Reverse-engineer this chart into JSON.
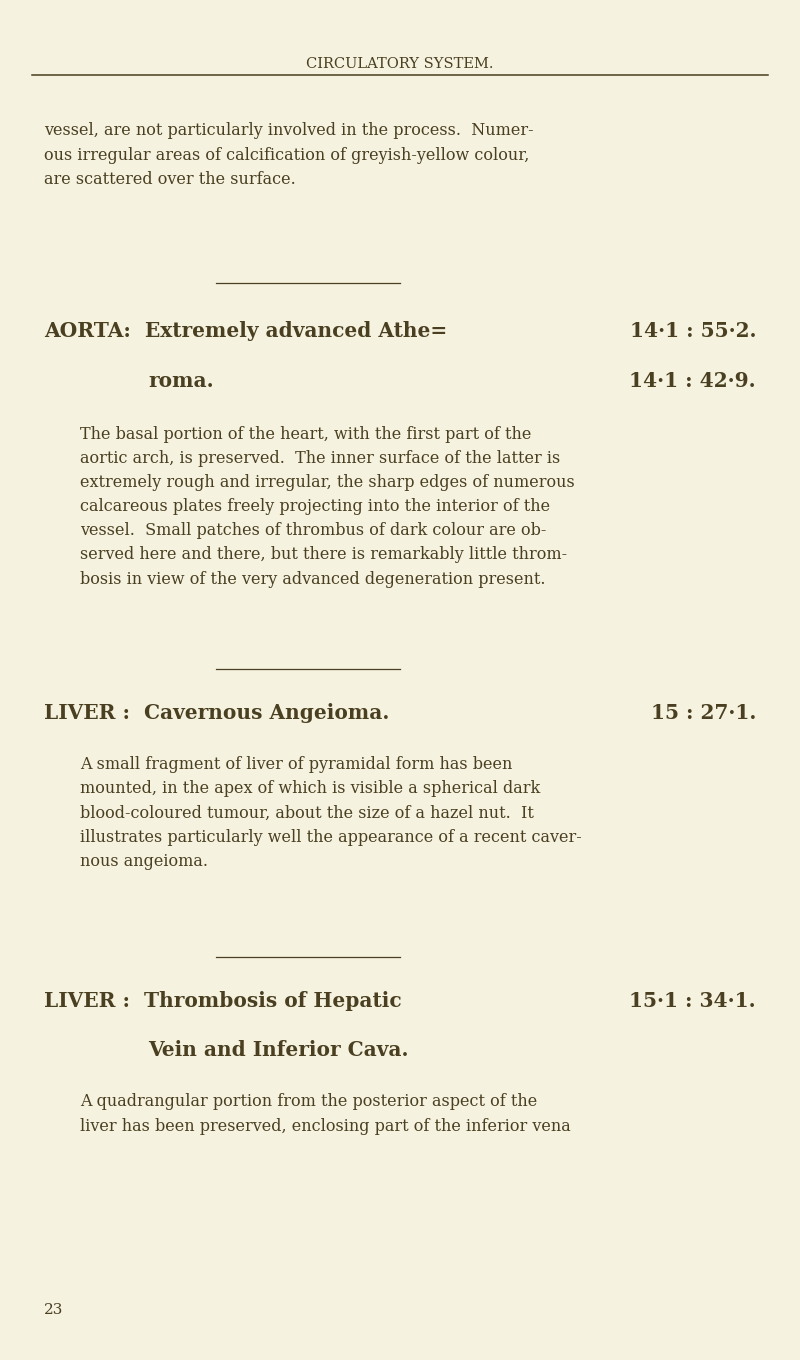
{
  "bg_color": "#f5f2e0",
  "text_color": "#4a3f20",
  "page_number": "23",
  "header": "CIRCULATORY SYSTEM.",
  "intro_text": "vessel, are not particularly involved in the process.  Numer-\nous irregular areas of calcification of greyish-yellow colour,\nare scattered over the surface.",
  "section1_title_left": "AORTA:  Extremely advanced Athe=",
  "section1_title_right": "14·1 : 55·2.",
  "section1_title_left2": "roma.",
  "section1_title_right2": "14·1 : 42·9.",
  "section1_body": "The basal portion of the heart, with the first part of the\naortic arch, is preserved.  The inner surface of the latter is\nextremely rough and irregular, the sharp edges of numerous\ncalcareous plates freely projecting into the interior of the\nvessel.  Small patches of thrombus of dark colour are ob-\nserved here and there, but there is remarkably little throm-\nbosis in view of the very advanced degeneration present.",
  "section2_title_left": "LIVER :  Cavernous Angeioma.",
  "section2_title_right": "15 : 27·1.",
  "section2_body": "A small fragment of liver of pyramidal form has been\nmounted, in the apex of which is visible a spherical dark\nblood-coloured tumour, about the size of a hazel nut.  It\nillustrates particularly well the appearance of a recent caver-\nnous angeioma.",
  "section3_title_left": "LIVER :  Thrombosis of Hepatic",
  "section3_title_right": "15·1 : 34·1.",
  "section3_title_left2": "Vein and Inferior Cava.",
  "section3_body": "A quadrangular portion from the posterior aspect of the\nliver has been preserved, enclosing part of the inferior vena"
}
